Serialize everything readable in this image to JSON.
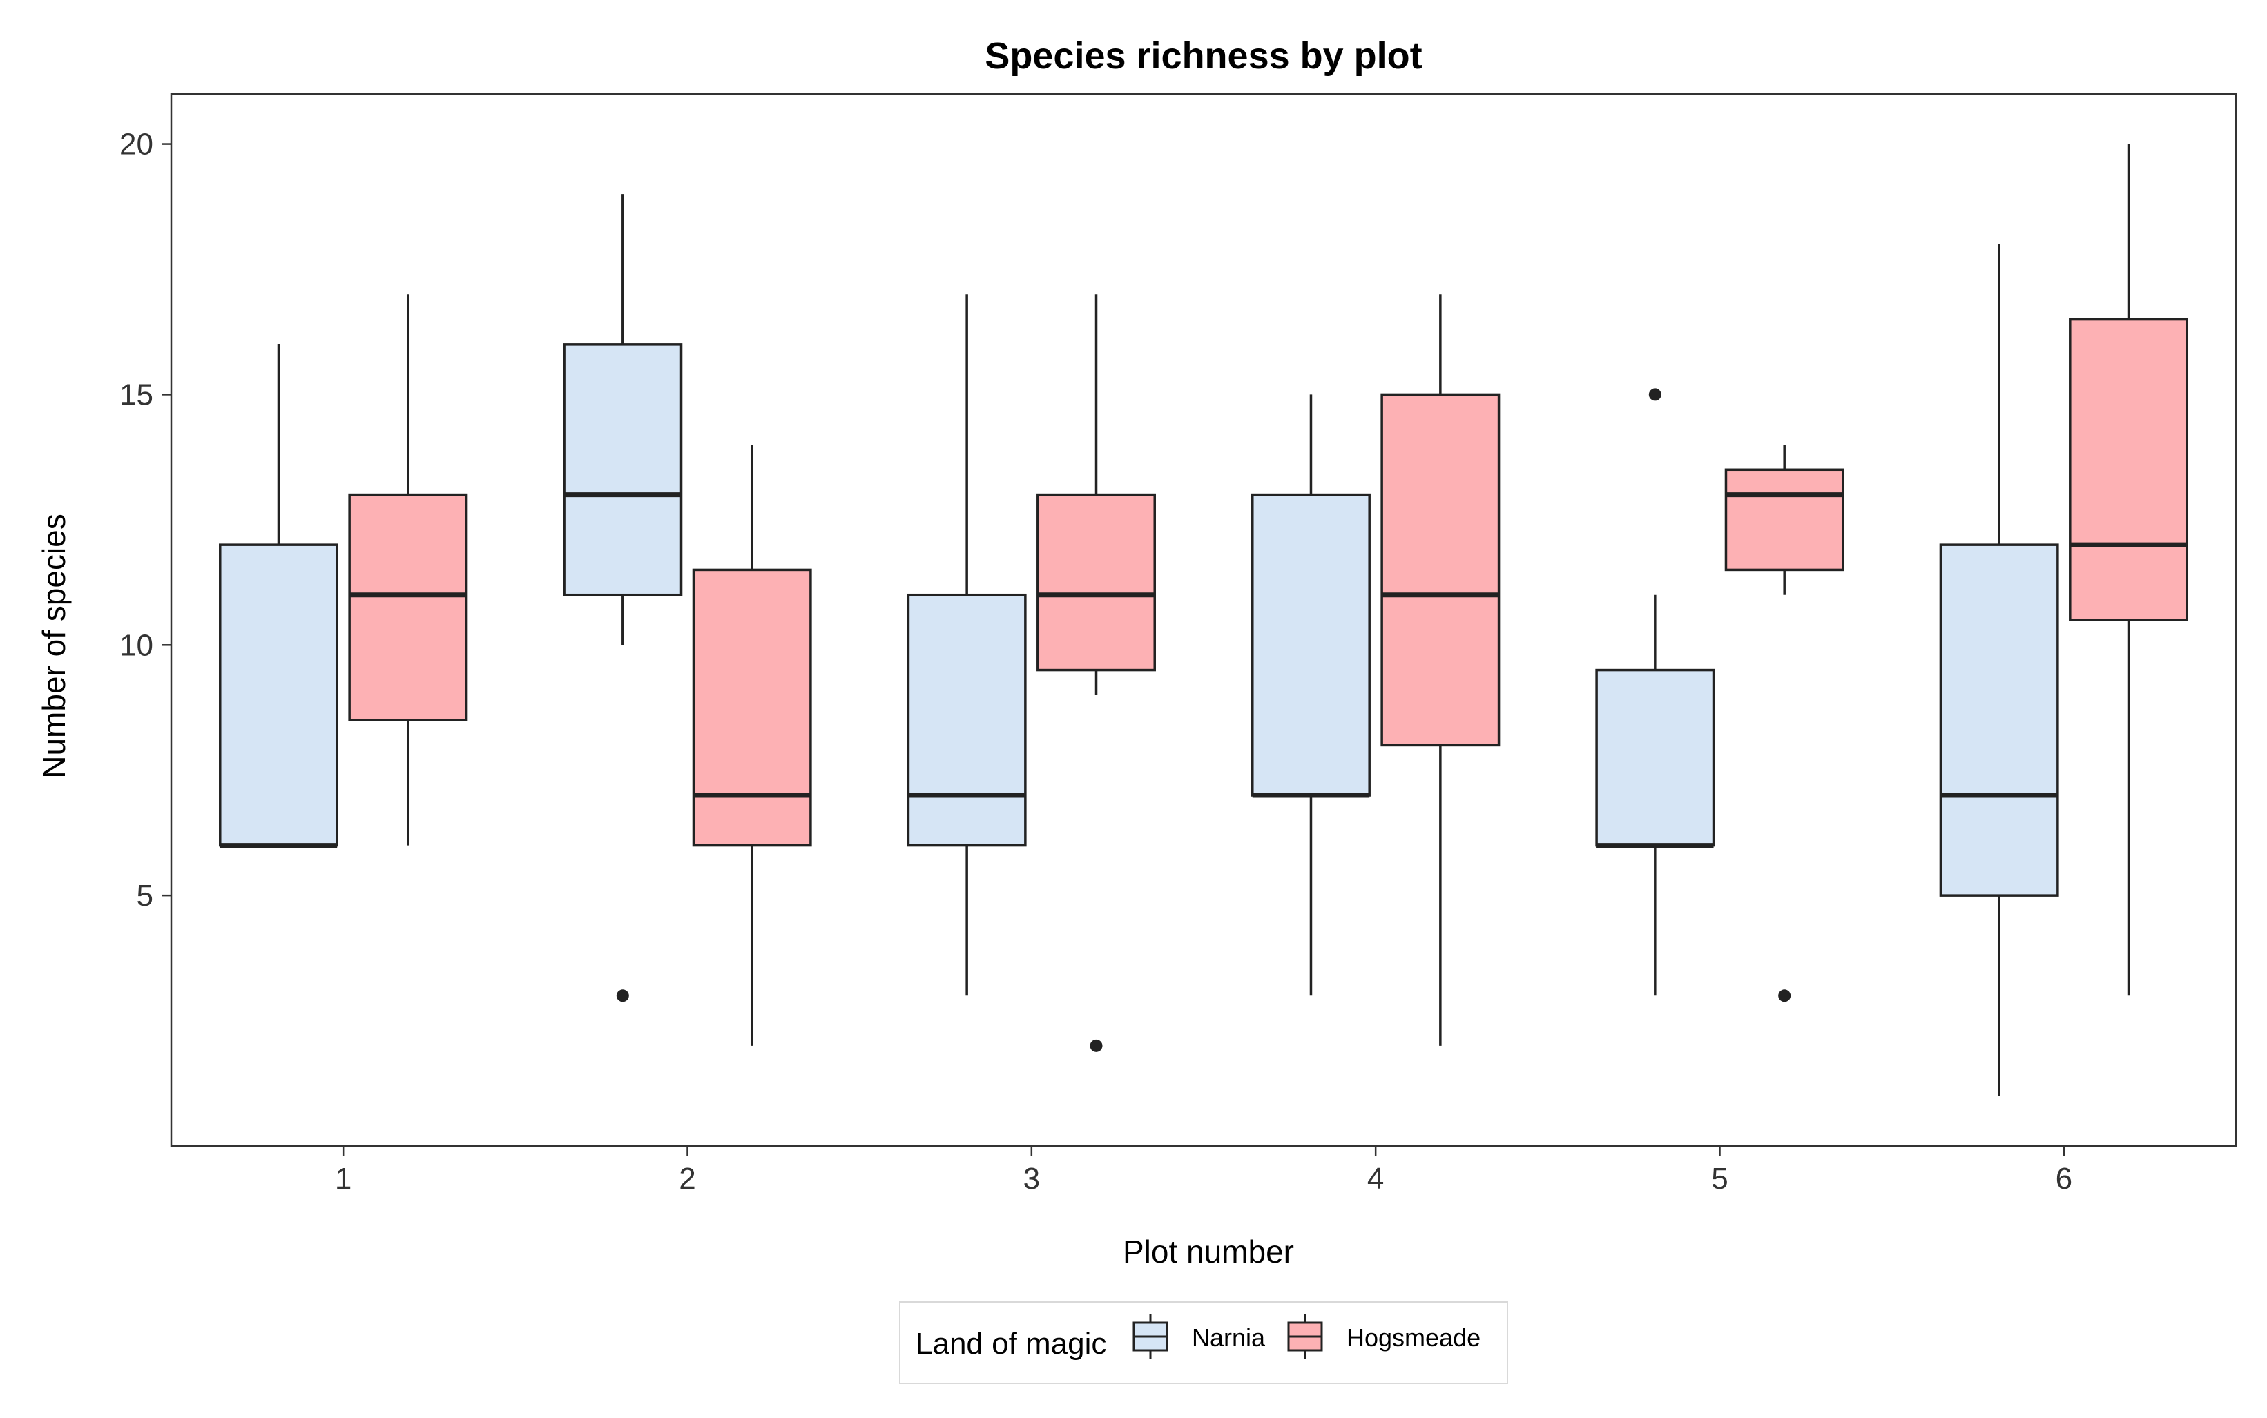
{
  "chart_data": {
    "type": "boxplot",
    "title": "Species richness by plot",
    "xlabel": "Plot number",
    "ylabel": "Number of species",
    "categories": [
      "1",
      "2",
      "3",
      "4",
      "5",
      "6"
    ],
    "ylim": [
      0,
      21
    ],
    "yticks": [
      5,
      10,
      15,
      20
    ],
    "grid": false,
    "legend": {
      "title": "Land of magic",
      "position": "bottom"
    },
    "series": [
      {
        "name": "Narnia",
        "color": "#d6e5f5",
        "boxes": [
          {
            "min": 6,
            "q1": 6,
            "median": 6,
            "q3": 12,
            "max": 16,
            "outliers": []
          },
          {
            "min": 10,
            "q1": 11,
            "median": 13,
            "q3": 16,
            "max": 19,
            "outliers": [
              3
            ]
          },
          {
            "min": 3,
            "q1": 6,
            "median": 7,
            "q3": 11,
            "max": 17,
            "outliers": []
          },
          {
            "min": 3,
            "q1": 7,
            "median": 7,
            "q3": 13,
            "max": 15,
            "outliers": []
          },
          {
            "min": 3,
            "q1": 6,
            "median": 6,
            "q3": 9.5,
            "max": 11,
            "outliers": [
              15
            ]
          },
          {
            "min": 1,
            "q1": 5,
            "median": 7,
            "q3": 12,
            "max": 18,
            "outliers": []
          }
        ]
      },
      {
        "name": "Hogsmeade",
        "color": "#fdb1b4",
        "boxes": [
          {
            "min": 6,
            "q1": 8.5,
            "median": 11,
            "q3": 13,
            "max": 17,
            "outliers": []
          },
          {
            "min": 2,
            "q1": 6,
            "median": 7,
            "q3": 11.5,
            "max": 14,
            "outliers": []
          },
          {
            "min": 9,
            "q1": 9.5,
            "median": 11,
            "q3": 13,
            "max": 17,
            "outliers": [
              2
            ]
          },
          {
            "min": 2,
            "q1": 8,
            "median": 11,
            "q3": 15,
            "max": 17,
            "outliers": []
          },
          {
            "min": 11,
            "q1": 11.5,
            "median": 13,
            "q3": 13.5,
            "max": 14,
            "outliers": [
              3
            ]
          },
          {
            "min": 3,
            "q1": 10.5,
            "median": 12,
            "q3": 16.5,
            "max": 20,
            "outliers": []
          }
        ]
      }
    ]
  }
}
